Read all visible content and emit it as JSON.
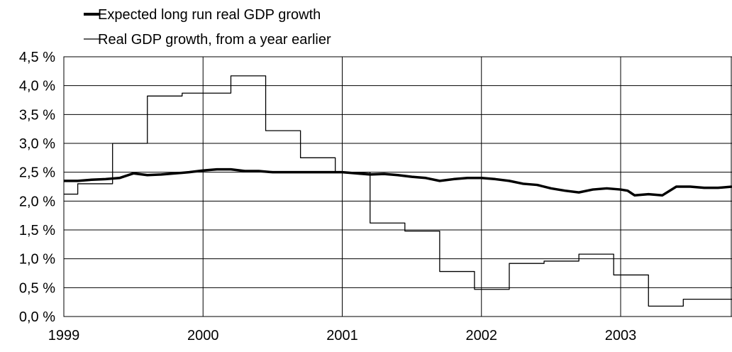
{
  "chart_data": {
    "type": "line",
    "title": "",
    "xlabel": "",
    "ylabel": "",
    "ylim": [
      0.0,
      4.5
    ],
    "xlim": [
      1999.0,
      2003.8
    ],
    "grid": true,
    "legend_position": "top-left",
    "x_tick_labels": [
      "1999",
      "2000",
      "2001",
      "2002",
      "2003"
    ],
    "x_tick_values": [
      1999,
      2000,
      2001,
      2002,
      2003
    ],
    "y_tick_labels": [
      "0,0 %",
      "0,5 %",
      "1,0 %",
      "1,5 %",
      "2,0 %",
      "2,5 %",
      "3,0 %",
      "3,5 %",
      "4,0 %",
      "4,5 %"
    ],
    "y_tick_values": [
      0.0,
      0.5,
      1.0,
      1.5,
      2.0,
      2.5,
      3.0,
      3.5,
      4.0,
      4.5
    ],
    "series": [
      {
        "name": "Expected long run real GDP growth",
        "style": "thick",
        "color": "#000000",
        "x": [
          1999.0,
          1999.1,
          1999.2,
          1999.3,
          1999.4,
          1999.5,
          1999.6,
          1999.7,
          1999.8,
          1999.9,
          2000.0,
          2000.1,
          2000.2,
          2000.3,
          2000.4,
          2000.5,
          2000.6,
          2000.7,
          2000.8,
          2000.9,
          2001.0,
          2001.1,
          2001.2,
          2001.3,
          2001.4,
          2001.5,
          2001.6,
          2001.7,
          2001.8,
          2001.9,
          2002.0,
          2002.1,
          2002.2,
          2002.3,
          2002.4,
          2002.5,
          2002.6,
          2002.7,
          2002.8,
          2002.9,
          2003.0,
          2003.05,
          2003.1,
          2003.2,
          2003.3,
          2003.4,
          2003.5,
          2003.6,
          2003.7,
          2003.8
        ],
        "y": [
          2.35,
          2.35,
          2.37,
          2.38,
          2.4,
          2.48,
          2.45,
          2.46,
          2.48,
          2.5,
          2.53,
          2.55,
          2.55,
          2.52,
          2.52,
          2.5,
          2.5,
          2.5,
          2.5,
          2.5,
          2.5,
          2.48,
          2.46,
          2.47,
          2.45,
          2.42,
          2.4,
          2.35,
          2.38,
          2.4,
          2.4,
          2.38,
          2.35,
          2.3,
          2.28,
          2.22,
          2.18,
          2.15,
          2.2,
          2.22,
          2.2,
          2.18,
          2.1,
          2.12,
          2.1,
          2.25,
          2.25,
          2.23,
          2.23,
          2.25
        ]
      },
      {
        "name": "Real GDP growth, from a year earlier",
        "style": "step",
        "color": "#000000",
        "x": [
          1999.0,
          1999.1,
          1999.35,
          1999.6,
          1999.85,
          2000.2,
          2000.45,
          2000.7,
          2000.95,
          2001.2,
          2001.45,
          2001.7,
          2001.95,
          2002.2,
          2002.45,
          2002.7,
          2002.95,
          2003.2,
          2003.45,
          2003.8
        ],
        "y": [
          2.12,
          2.3,
          3.0,
          3.82,
          3.87,
          4.17,
          3.22,
          2.75,
          2.5,
          1.62,
          1.48,
          0.78,
          0.47,
          0.92,
          0.96,
          1.08,
          0.72,
          0.18,
          0.3,
          0.3
        ]
      }
    ]
  }
}
